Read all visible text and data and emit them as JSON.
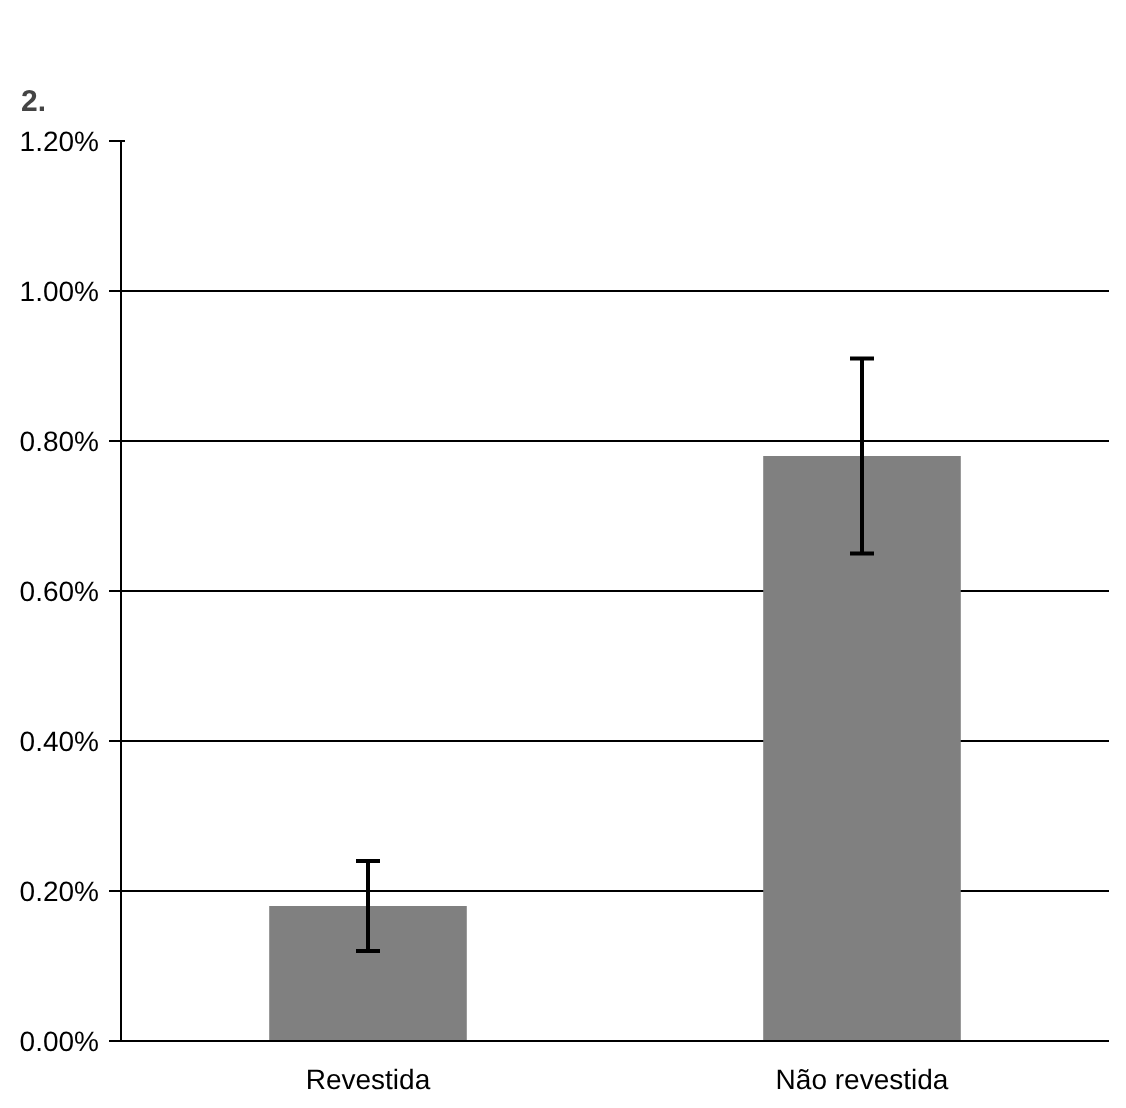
{
  "chart_data": {
    "type": "bar",
    "title": "2.",
    "categories": [
      "Revestida",
      "Não revestida"
    ],
    "values": [
      0.18,
      0.78
    ],
    "errors": [
      [
        0.12,
        0.24
      ],
      [
        0.65,
        0.91
      ]
    ],
    "color": "#808080",
    "ylim": [
      0,
      1.2
    ],
    "yticks": [
      {
        "value": 0,
        "label": "0.00%"
      },
      {
        "value": 0.2,
        "label": "0.20%"
      },
      {
        "value": 0.4,
        "label": "0.40%"
      },
      {
        "value": 0.6,
        "label": "0.60%"
      },
      {
        "value": 0.8,
        "label": "0.80%"
      },
      {
        "value": 1.0,
        "label": "1.00%"
      },
      {
        "value": 1.2,
        "label": "1.20%"
      }
    ],
    "grid": "y"
  }
}
